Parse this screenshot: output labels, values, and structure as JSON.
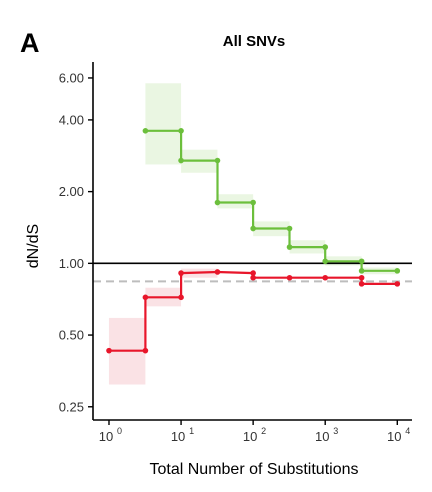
{
  "panel_label": "A",
  "chart_data": {
    "type": "line",
    "title": "All SNVs",
    "xlabel": "Total Number of Substitutions",
    "ylabel": "dN/dS",
    "x_scale": "log10",
    "y_scale": "log",
    "xlim": [
      0.6,
      16000
    ],
    "ylim": [
      0.22,
      7.0
    ],
    "x_ticks": [
      {
        "value": 1,
        "base": "10",
        "exp": "0"
      },
      {
        "value": 10,
        "base": "10",
        "exp": "1"
      },
      {
        "value": 100,
        "base": "10",
        "exp": "2"
      },
      {
        "value": 1000,
        "base": "10",
        "exp": "3"
      },
      {
        "value": 10000,
        "base": "10",
        "exp": "4"
      }
    ],
    "y_ticks": [
      {
        "value": 0.25,
        "label": "0.25"
      },
      {
        "value": 0.5,
        "label": "0.50"
      },
      {
        "value": 1.0,
        "label": "1.00"
      },
      {
        "value": 2.0,
        "label": "2.00"
      },
      {
        "value": 4.0,
        "label": "4.00"
      },
      {
        "value": 6.0,
        "label": "6.00"
      }
    ],
    "reference_lines": [
      {
        "y": 1.0,
        "style": "solid",
        "color": "#000000"
      },
      {
        "y": 0.84,
        "style": "dashed",
        "color": "#bdbdbd"
      }
    ],
    "grid": false,
    "series": [
      {
        "color": "#6cbf3c",
        "fill": "#e6f4dd",
        "style": "step",
        "points": [
          {
            "x": 3.2,
            "y": 3.6,
            "ci": [
              2.6,
              5.7
            ]
          },
          {
            "x": 10,
            "y": 3.6
          },
          {
            "x": 10,
            "y": 2.7,
            "ci": [
              2.4,
              3.0
            ]
          },
          {
            "x": 32,
            "y": 2.7
          },
          {
            "x": 32,
            "y": 1.8,
            "ci": [
              1.7,
              1.95
            ]
          },
          {
            "x": 100,
            "y": 1.8
          },
          {
            "x": 100,
            "y": 1.4,
            "ci": [
              1.3,
              1.5
            ]
          },
          {
            "x": 320,
            "y": 1.4
          },
          {
            "x": 320,
            "y": 1.17,
            "ci": [
              1.1,
              1.25
            ]
          },
          {
            "x": 1000,
            "y": 1.17
          },
          {
            "x": 1000,
            "y": 1.02,
            "ci": [
              0.98,
              1.07
            ]
          },
          {
            "x": 3200,
            "y": 1.02
          },
          {
            "x": 3200,
            "y": 0.93,
            "ci": [
              0.9,
              0.96
            ]
          },
          {
            "x": 10000,
            "y": 0.93
          }
        ]
      },
      {
        "color": "#e8162b",
        "fill": "#f9dde0",
        "style": "step",
        "points": [
          {
            "x": 1.0,
            "y": 0.43,
            "ci": [
              0.31,
              0.59
            ]
          },
          {
            "x": 3.2,
            "y": 0.43
          },
          {
            "x": 3.2,
            "y": 0.72,
            "ci": [
              0.66,
              0.79
            ]
          },
          {
            "x": 10,
            "y": 0.72
          },
          {
            "x": 10,
            "y": 0.91,
            "ci": [
              0.87,
              0.95
            ]
          },
          {
            "x": 32,
            "y": 0.92
          },
          {
            "x": 100,
            "y": 0.91
          },
          {
            "x": 100,
            "y": 0.87
          },
          {
            "x": 320,
            "y": 0.87
          },
          {
            "x": 1000,
            "y": 0.87
          },
          {
            "x": 3200,
            "y": 0.87
          },
          {
            "x": 3200,
            "y": 0.82
          },
          {
            "x": 10000,
            "y": 0.82
          }
        ]
      }
    ]
  }
}
